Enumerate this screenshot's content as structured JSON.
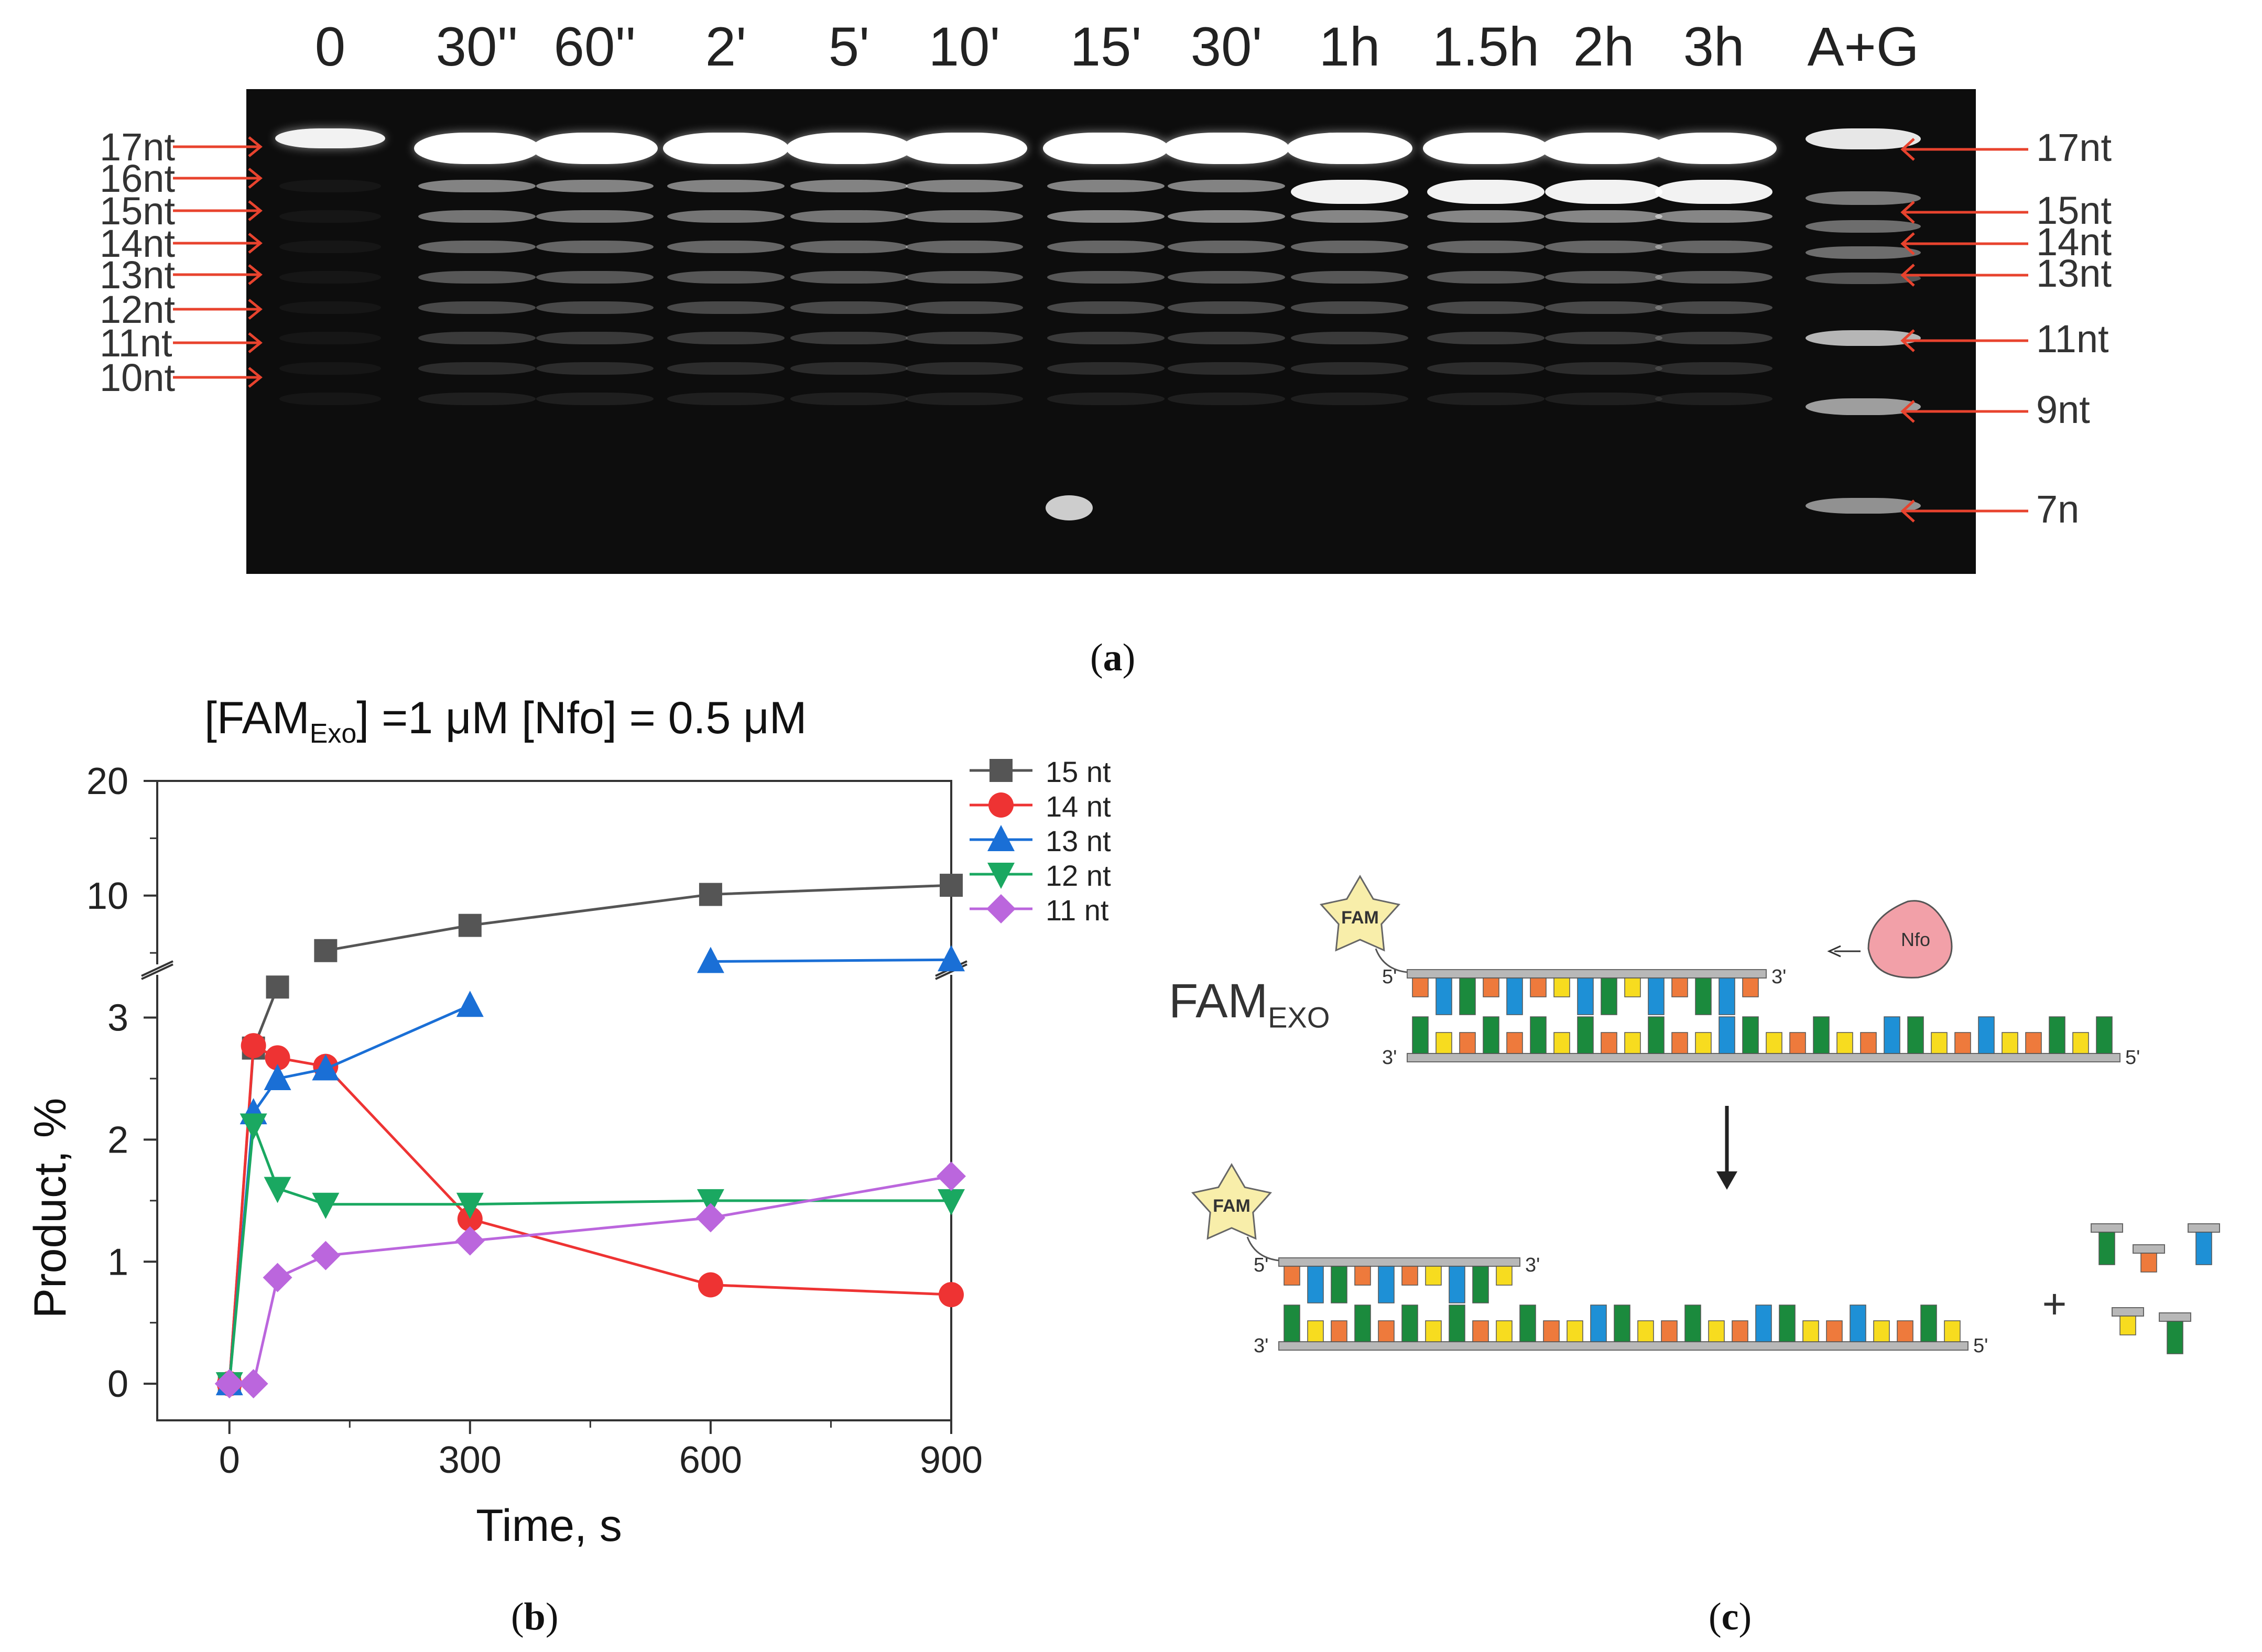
{
  "panel_a": {
    "label": "a",
    "lanes": [
      "0",
      "30''",
      "60''",
      "2'",
      "5'",
      "10'",
      "15'",
      "30'",
      "1h",
      "1.5h",
      "2h",
      "3h",
      "A+G"
    ],
    "markers_left": [
      "17nt",
      "16nt",
      "15nt",
      "14nt",
      "13nt",
      "12nt",
      "11nt",
      "10nt"
    ],
    "markers_right": [
      "17nt",
      "15nt",
      "14nt",
      "13nt",
      "11nt",
      "9nt",
      "7n"
    ],
    "arrow_color": "#e8432e"
  },
  "panel_b": {
    "label": "b",
    "title": {
      "prefix": "[FAM",
      "sub": "Exo",
      "suffix": "] =1 μM   [Nfo] = 0.5 μM"
    }
  },
  "chart_data": {
    "type": "line",
    "title": "[FAMExo] =1 μM [Nfo] = 0.5 μM",
    "xlabel": "Time, s",
    "ylabel": "Product, %",
    "x": [
      0,
      30,
      60,
      120,
      300,
      600,
      900
    ],
    "x_ticks": [
      "0",
      "300",
      "600",
      "900"
    ],
    "xlim": [
      -90,
      900
    ],
    "y_ticks_lower": [
      "0",
      "1",
      "2",
      "3"
    ],
    "y_ticks_upper": [
      "10",
      "20"
    ],
    "ylim_lower": [
      -0.3,
      3.35
    ],
    "ylim_upper": [
      4.0,
      20
    ],
    "axis_break": true,
    "series": [
      {
        "name": "15 nt",
        "color": "#555555",
        "marker": "square",
        "values": [
          0,
          2.75,
          3.25,
          5.2,
          7.4,
          10.1,
          10.9
        ]
      },
      {
        "name": "14 nt",
        "color": "#ee3333",
        "marker": "circle",
        "values": [
          0,
          2.77,
          2.67,
          2.6,
          1.35,
          0.81,
          0.73
        ]
      },
      {
        "name": "13 nt",
        "color": "#1a6fd6",
        "marker": "triangle-up",
        "values": [
          0,
          2.22,
          2.5,
          2.58,
          3.1,
          4.25,
          4.4
        ]
      },
      {
        "name": "12 nt",
        "color": "#1aa861",
        "marker": "triangle-down",
        "values": [
          0,
          2.12,
          1.6,
          1.47,
          1.47,
          1.5,
          1.5
        ]
      },
      {
        "name": "11 nt",
        "color": "#bb66dd",
        "marker": "diamond",
        "values": [
          0,
          0,
          0.87,
          1.05,
          1.17,
          1.36,
          1.7
        ]
      }
    ]
  },
  "panel_c": {
    "label": "c",
    "fam_label_main": "FAM",
    "fam_label_sub": "EXO",
    "fam_tag": "FAM",
    "enzyme": "Nfo",
    "end_5": "5'",
    "end_3": "3'",
    "plus": "+",
    "colors": {
      "green": "#1b8a3d",
      "blue": "#1e90d6",
      "orange": "#ee7a3c",
      "yellow": "#f7dc1f",
      "backbone": "#b8b8b8",
      "star": "#f8eeaa",
      "enzyme": "#f2a0a8"
    }
  }
}
